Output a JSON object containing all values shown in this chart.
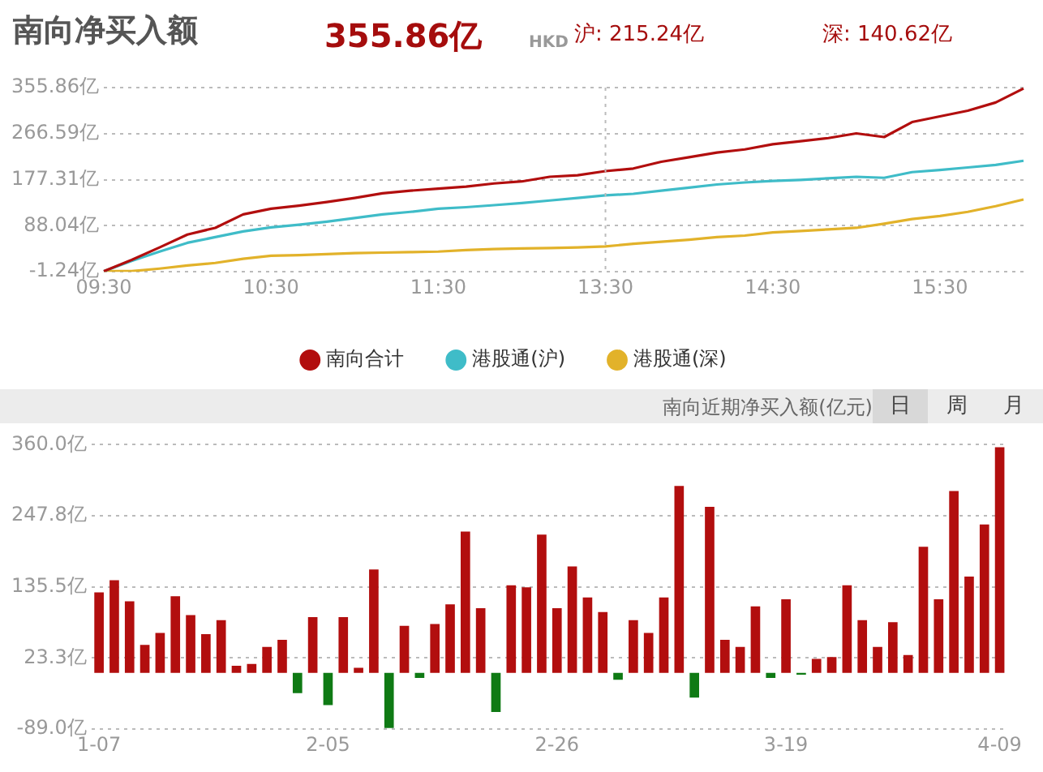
{
  "chart_data": [
    {
      "type": "line",
      "title": "南向净买入额",
      "annotations": [
        "355.86亿",
        "HKD",
        "沪: 215.24亿",
        "深: 140.62亿"
      ],
      "categories": [
        "09:30",
        null,
        null,
        null,
        null,
        null,
        "10:30",
        null,
        null,
        null,
        null,
        null,
        "11:30",
        null,
        null,
        null,
        null,
        null,
        "13:30",
        null,
        null,
        null,
        null,
        null,
        "14:30",
        null,
        null,
        null,
        null,
        null,
        "15:30",
        null,
        null,
        null
      ],
      "series": [
        {
          "name": "南向合计",
          "color": "#b20e0e",
          "values": [
            0,
            22,
            46,
            71,
            84,
            110,
            121,
            127,
            134,
            142,
            151,
            156,
            160,
            164,
            170,
            174,
            183,
            186,
            194,
            199,
            212,
            221,
            230,
            236,
            246,
            252,
            258,
            267,
            260,
            289,
            300,
            311,
            327,
            354
          ]
        },
        {
          "name": "港股通(沪)",
          "color": "#3fbcc8",
          "values": [
            0,
            20,
            38,
            55,
            66,
            77,
            85,
            90,
            96,
            103,
            110,
            115,
            121,
            124,
            128,
            132,
            137,
            142,
            147,
            150,
            156,
            162,
            168,
            172,
            175,
            177,
            180,
            183,
            181,
            192,
            196,
            201,
            206,
            214
          ]
        },
        {
          "name": "港股通(深)",
          "color": "#e2b22a",
          "values": [
            0,
            0,
            5,
            11,
            16,
            24,
            30,
            31,
            33,
            35,
            36,
            37,
            38,
            41,
            43,
            44,
            45,
            46,
            48,
            53,
            57,
            61,
            66,
            69,
            75,
            78,
            81,
            84,
            92,
            101,
            107,
            115,
            126,
            139
          ]
        }
      ],
      "ylim": [
        -1.24,
        355.86
      ],
      "yticks": [
        {
          "value": -1.24,
          "label": "-1.24亿"
        },
        {
          "value": 88.04,
          "label": "88.04亿"
        },
        {
          "value": 177.31,
          "label": "177.31亿"
        },
        {
          "value": 266.59,
          "label": "266.59亿"
        },
        {
          "value": 355.86,
          "label": "355.86亿"
        }
      ],
      "ref_lines": [
        {
          "axis": "x",
          "value": "13:30",
          "color": "#bbbbbb",
          "line_style": "dotted"
        }
      ],
      "grid": "y",
      "legend": "bottom",
      "marker": "none"
    },
    {
      "type": "bar",
      "title": "南向近期净买入额(亿元)",
      "annotations": [
        "日",
        "周",
        "月"
      ],
      "categories": [
        "1-07",
        null,
        null,
        null,
        null,
        null,
        null,
        null,
        null,
        null,
        null,
        null,
        null,
        null,
        null,
        "2-05",
        null,
        null,
        null,
        null,
        null,
        null,
        null,
        null,
        null,
        null,
        null,
        null,
        null,
        null,
        "2-26",
        null,
        null,
        null,
        null,
        null,
        null,
        null,
        null,
        null,
        null,
        null,
        null,
        null,
        null,
        "3-19",
        null,
        null,
        null,
        null,
        null,
        null,
        null,
        null,
        null,
        null,
        null,
        null,
        null,
        "4-09"
      ],
      "values": [
        127,
        146,
        113,
        44,
        63,
        121,
        91,
        61,
        83,
        11,
        14,
        41,
        52,
        -32,
        88,
        -51,
        88,
        8,
        163,
        -87,
        74,
        -8,
        77,
        108,
        223,
        102,
        -62,
        138,
        135,
        218,
        102,
        168,
        119,
        96,
        -11,
        83,
        63,
        119,
        295,
        -39,
        262,
        52,
        41,
        105,
        -8,
        116,
        -3,
        22,
        25,
        138,
        83,
        41,
        80,
        28,
        199,
        116,
        287,
        152,
        234,
        356
      ],
      "colors": [
        "#b20e0e",
        "#b20e0e",
        "#b20e0e",
        "#b20e0e",
        "#b20e0e",
        "#b20e0e",
        "#b20e0e",
        "#b20e0e",
        "#b20e0e",
        "#b20e0e",
        "#b20e0e",
        "#b20e0e",
        "#b20e0e",
        "#0f7a14",
        "#b20e0e",
        "#0f7a14",
        "#b20e0e",
        "#b20e0e",
        "#b20e0e",
        "#0f7a14",
        "#b20e0e",
        "#0f7a14",
        "#b20e0e",
        "#b20e0e",
        "#b20e0e",
        "#b20e0e",
        "#0f7a14",
        "#b20e0e",
        "#b20e0e",
        "#b20e0e",
        "#b20e0e",
        "#b20e0e",
        "#b20e0e",
        "#b20e0e",
        "#0f7a14",
        "#b20e0e",
        "#b20e0e",
        "#b20e0e",
        "#b20e0e",
        "#0f7a14",
        "#b20e0e",
        "#b20e0e",
        "#b20e0e",
        "#b20e0e",
        "#0f7a14",
        "#b20e0e",
        "#0f7a14",
        "#b20e0e",
        "#b20e0e",
        "#b20e0e",
        "#b20e0e",
        "#b20e0e",
        "#b20e0e",
        "#b20e0e",
        "#b20e0e",
        "#b20e0e",
        "#b20e0e",
        "#b20e0e",
        "#b20e0e",
        "#b20e0e"
      ],
      "ylim": [
        -89.0,
        360.0
      ],
      "yticks": [
        {
          "value": -89.0,
          "label": "-89.0亿"
        },
        {
          "value": 23.3,
          "label": "23.3亿"
        },
        {
          "value": 135.5,
          "label": "135.5亿"
        },
        {
          "value": 247.8,
          "label": "247.8亿"
        },
        {
          "value": 360.0,
          "label": "360.0亿"
        }
      ],
      "grid": "y"
    }
  ]
}
